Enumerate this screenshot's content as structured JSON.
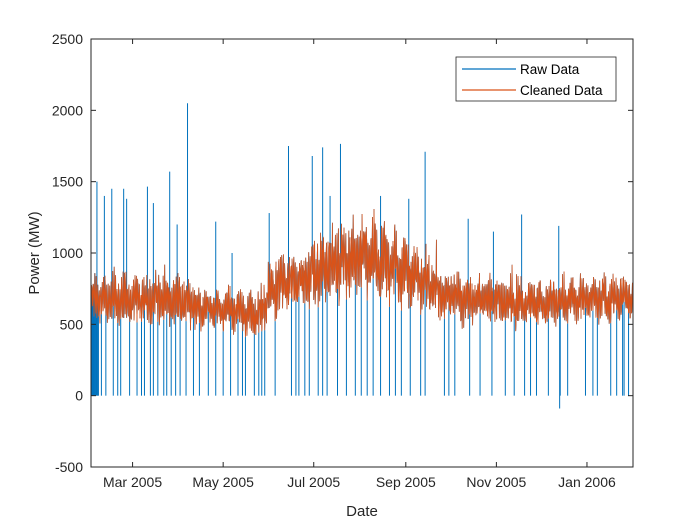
{
  "chart_data": {
    "type": "line",
    "title": "",
    "xlabel": "Date",
    "ylabel": "Power (MW)",
    "x_unit": "days since 2005-02-01",
    "xlim": [
      0,
      365
    ],
    "ylim": [
      -500,
      2500
    ],
    "grid": false,
    "legend_placement": "top-right",
    "x_ticks": [
      {
        "day": 28,
        "label": "Mar 2005"
      },
      {
        "day": 89,
        "label": "May 2005"
      },
      {
        "day": 150,
        "label": "Jul 2005"
      },
      {
        "day": 212,
        "label": "Sep 2005"
      },
      {
        "day": 273,
        "label": "Nov 2005"
      },
      {
        "day": 334,
        "label": "Jan 2006"
      }
    ],
    "y_ticks": [
      {
        "value": -500,
        "label": "-500"
      },
      {
        "value": 0,
        "label": "0"
      },
      {
        "value": 500,
        "label": "500"
      },
      {
        "value": 1000,
        "label": "1000"
      },
      {
        "value": 1500,
        "label": "1500"
      },
      {
        "value": 2000,
        "label": "2000"
      },
      {
        "value": 2500,
        "label": "2500"
      }
    ],
    "series": [
      {
        "name": "Raw Data",
        "color": "#0072BD",
        "note_base": "same as cleaned data plus outliers",
        "spikes": [
          [
            4,
            1500
          ],
          [
            9,
            1400
          ],
          [
            14,
            1450
          ],
          [
            22,
            1450
          ],
          [
            24,
            1380
          ],
          [
            38,
            1465
          ],
          [
            42,
            1350
          ],
          [
            53,
            1570
          ],
          [
            58,
            1200
          ],
          [
            65,
            2050
          ],
          [
            84,
            1220
          ],
          [
            95,
            1000
          ],
          [
            120,
            1280
          ],
          [
            133,
            1750
          ],
          [
            149,
            1680
          ],
          [
            156,
            1740
          ],
          [
            161,
            1400
          ],
          [
            168,
            1765
          ],
          [
            195,
            1400
          ],
          [
            214,
            1380
          ],
          [
            225,
            1710
          ],
          [
            254,
            1240
          ],
          [
            271,
            1150
          ],
          [
            290,
            1270
          ],
          [
            315,
            1190
          ],
          [
            315.6,
            -90
          ]
        ],
        "dropouts_to_zero": [
          0,
          0.5,
          1,
          1.5,
          2,
          2.5,
          3,
          3.5,
          4,
          4.5,
          5,
          7,
          10,
          15,
          18,
          20,
          26,
          31,
          34,
          36,
          40,
          42,
          45,
          49,
          51,
          54,
          57,
          60,
          64,
          69,
          73,
          79,
          84,
          89,
          94,
          99,
          102,
          104,
          110,
          113,
          115,
          117,
          124,
          135,
          138,
          140,
          144,
          147,
          153,
          156,
          159,
          166,
          172,
          178,
          182,
          186,
          190,
          195,
          201,
          205,
          209,
          215,
          222,
          225,
          238,
          241,
          245,
          255,
          262,
          270,
          279,
          285,
          292,
          296,
          300,
          308,
          316,
          321,
          333,
          338,
          341,
          350,
          354,
          358,
          359,
          362
        ]
      },
      {
        "name": "Cleaned Data",
        "color": "#D95319",
        "band_step_days": 14,
        "band_low": [
          500,
          480,
          480,
          470,
          460,
          450,
          450,
          440,
          380,
          550,
          560,
          620,
          650,
          680,
          650,
          620,
          560,
          500,
          480,
          500,
          450,
          470,
          480,
          500,
          500,
          490,
          500
        ],
        "band_high": [
          850,
          870,
          860,
          880,
          870,
          800,
          760,
          760,
          720,
          1050,
          1000,
          1150,
          1200,
          1300,
          1250,
          1150,
          1050,
          900,
          850,
          850,
          850,
          820,
          830,
          850,
          860,
          850,
          860
        ]
      }
    ]
  }
}
